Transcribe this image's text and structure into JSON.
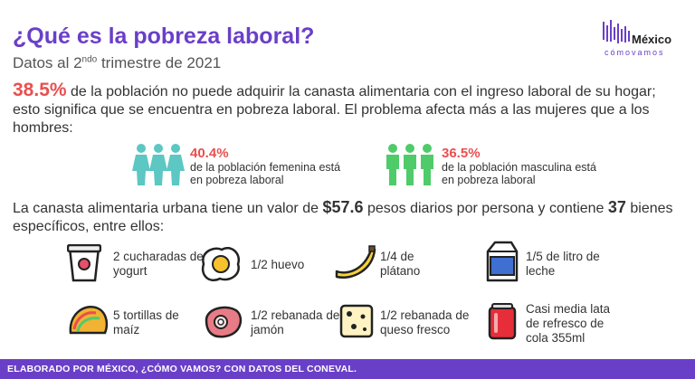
{
  "header": {
    "title": "¿Qué es la pobreza laboral?",
    "subtitle_prefix": "Datos al 2",
    "subtitle_sup": "ndo",
    "subtitle_suffix": " trimestre de 2021"
  },
  "logo": {
    "name": "México",
    "tagline": "cómovamos"
  },
  "intro": {
    "highlight": "38.5%",
    "text": " de la población no puede adquirir la canasta alimentaria con el ingreso laboral de su hogar; esto significa que se encuentra en pobreza laboral. El problema afecta más a las mujeres que a los hombres:"
  },
  "stats": [
    {
      "pct": "40.4%",
      "desc": "de la población femenina está en pobreza laboral",
      "color": "#5cc7c3"
    },
    {
      "pct": "36.5%",
      "desc": "de la población masculina está en pobreza laboral",
      "color": "#4fcb6a"
    }
  ],
  "canasta": {
    "part1": "La canasta alimentaria urbana tiene un valor de ",
    "value": "$57.6",
    "part2": " pesos diarios por persona y contiene ",
    "count": "37",
    "part3": " bienes específicos, entre ellos:"
  },
  "items": [
    {
      "label": "2 cucharadas de yogurt",
      "icon": "yogurt-icon"
    },
    {
      "label": "1/2 huevo",
      "icon": "egg-icon"
    },
    {
      "label": "1/4 de plátano",
      "icon": "banana-icon"
    },
    {
      "label": "1/5 de litro de leche",
      "icon": "milk-icon"
    },
    {
      "label": "5 tortillas de maíz",
      "icon": "taco-icon"
    },
    {
      "label": "1/2 rebanada de jamón",
      "icon": "ham-icon"
    },
    {
      "label": "1/2 rebanada de queso fresco",
      "icon": "cheese-icon"
    },
    {
      "label": "Casi media lata de refresco de cola 355ml",
      "icon": "soda-can-icon"
    }
  ],
  "footer": {
    "text": "ELABORADO POR MÉXICO, ¿CÓMO VAMOS? CON DATOS DEL CONEVAL."
  }
}
